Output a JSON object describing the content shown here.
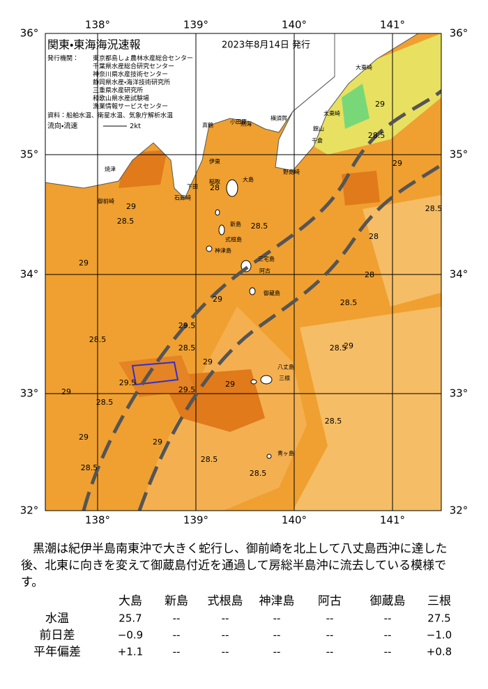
{
  "header": {
    "title": "関東・東海海況速報",
    "date": "2023年8月14日 発行"
  },
  "legend": {
    "issuer_label": "発行機関：",
    "issuers": [
      "東京都島しょ農林水産総合センター",
      "千葉県水産総合研究センター",
      "神奈川県水産技術センター",
      "静岡県水産・海洋技術研究所",
      "三重県水産研究所",
      "和歌山県水産試験場",
      "漁業情報サービスセンター"
    ],
    "sources": "資料：船舶水温、衛星水温、気象庁解析水温",
    "current_label": "流向・流速",
    "current_scale": "2kt"
  },
  "map": {
    "lon_labels": [
      "138°",
      "139°",
      "140°",
      "141°"
    ],
    "lat_labels": [
      "36°",
      "35°",
      "34°",
      "33°",
      "32°"
    ],
    "places": [
      "大島",
      "新島",
      "式根島",
      "神津島",
      "三宅島",
      "阿古",
      "御蔵島",
      "八丈島",
      "三根",
      "青ヶ島",
      "大東崎",
      "太東崎",
      "館山",
      "千倉",
      "野島崎",
      "横須賀",
      "小田原",
      "真鶴",
      "熱海",
      "伊東",
      "稲取",
      "下田",
      "石廊崎",
      "御前崎",
      "焼津"
    ],
    "contour_labels": [
      "29",
      "28.5",
      "29",
      "28",
      "28.5",
      "29",
      "29.5",
      "29",
      "28.5",
      "28.5",
      "29",
      "28.5",
      "29.5",
      "29",
      "29",
      "28.5",
      "29.5",
      "29",
      "28.5",
      "28.5",
      "29",
      "28.5",
      "28.5",
      "28",
      "28.5",
      "29",
      "28.5",
      "28",
      "28.5",
      "29"
    ]
  },
  "summary": "黒潮は紀伊半島南東沖で大きく蛇行し、御前崎を北上して八丈島西沖に達した後、北東に向きを変えて御蔵島付近を通過して房総半島沖に流去している模様です。",
  "table": {
    "columns": [
      "大島",
      "新島",
      "式根島",
      "神津島",
      "阿古",
      "御蔵島",
      "三根"
    ],
    "rows": [
      {
        "label": "水温",
        "cells": [
          "25.7",
          "--",
          "--",
          "--",
          "--",
          "--",
          "27.5"
        ]
      },
      {
        "label": "前日差",
        "cells": [
          "−0.9",
          "--",
          "--",
          "--",
          "--",
          "--",
          "−1.0"
        ]
      },
      {
        "label": "平年偏差",
        "cells": [
          "+1.1",
          "--",
          "--",
          "--",
          "--",
          "--",
          "+0.8"
        ]
      }
    ]
  }
}
